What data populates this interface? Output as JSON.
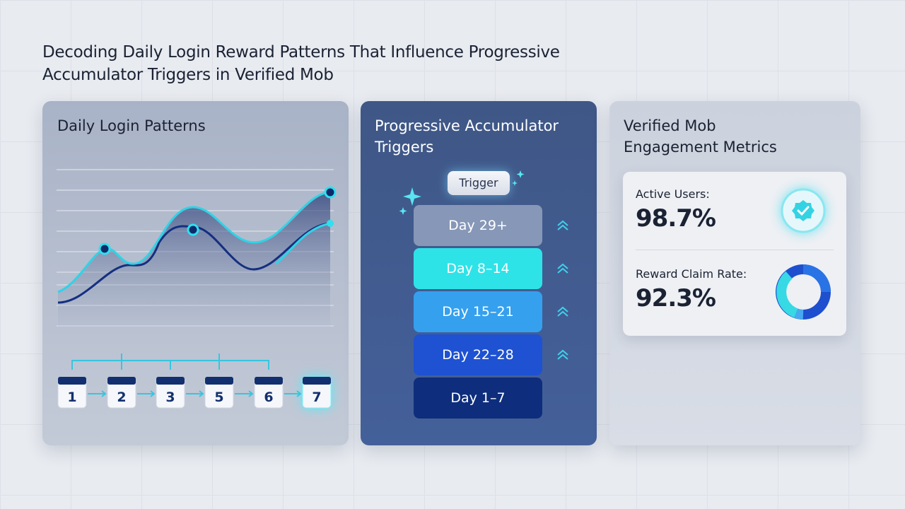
{
  "header": {
    "title": "Decoding Daily Login Reward Patterns That Influence Progressive Accumulator Triggers in Verified Mob"
  },
  "panels": [
    {
      "title": "Daily Login Patterns",
      "calendar_days": [
        "1",
        "2",
        "3",
        "5",
        "6",
        "7"
      ]
    },
    {
      "title": "Progressive Accumulator Triggers",
      "badge": "Trigger",
      "tiers": [
        "Day 29+",
        "Day 8–14",
        "Day 15–21",
        "Day 22–28",
        "Day 1–7"
      ]
    },
    {
      "title": "Verified Mob Engagement Metrics",
      "metrics": [
        {
          "label": "Active Users:",
          "value": "98.7%"
        },
        {
          "label": "Reward Claim Rate:",
          "value": "92.3%"
        }
      ]
    }
  ]
}
